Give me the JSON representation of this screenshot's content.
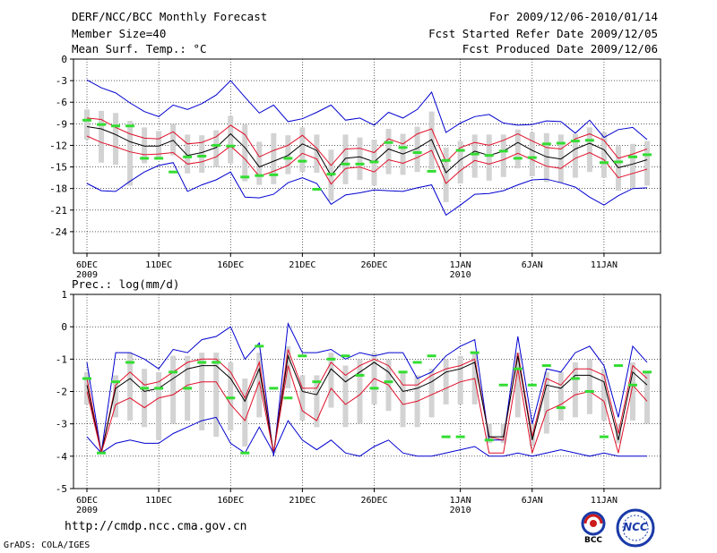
{
  "header": {
    "title": "DERF/NCC/BCC Monthly Forecast",
    "member_size": "Member Size=40",
    "variable": "Mean Surf. Temp.: °C",
    "period": "For 2009/12/06-2010/01/14",
    "started": "Fcst Started Refer Date 2009/12/05",
    "produced": "Fcst Produced Date 2009/12/06"
  },
  "footer": {
    "url": "http://cmdp.ncc.cma.gov.cn",
    "credit": "GrADS: COLA/IGES",
    "logo_bcc": "BCC",
    "logo_ncc": "NCC"
  },
  "colors": {
    "mean": "#000000",
    "spread": "#e0102a",
    "extreme": "#0000d0",
    "box": "#d3d3d3",
    "obs": "#33dd33"
  },
  "chart_data": [
    {
      "type": "line",
      "title": "Mean Surf. Temp.: °C",
      "ylim": [
        -27,
        0
      ],
      "yticks": [
        0,
        -3,
        -6,
        -9,
        -12,
        -15,
        -18,
        -21,
        -24
      ],
      "ytick_labels": [
        "0",
        "-3",
        "-6",
        "-9",
        "-12",
        "-15",
        "-18",
        "-21",
        "-24"
      ],
      "xlim": [
        0,
        39
      ],
      "xticks": [
        0,
        5,
        10,
        15,
        20,
        26,
        31,
        36
      ],
      "xtick_labels": [
        "6DEC",
        "11DEC",
        "16DEC",
        "21DEC",
        "26DEC",
        "1JAN",
        "6JAN",
        "11JAN"
      ],
      "xyear_labels": [
        {
          "x": 0,
          "label": "2009"
        },
        {
          "x": 26,
          "label": "2010"
        }
      ],
      "series": [
        {
          "name": "ensemble max",
          "color": "#0000d0",
          "values": [
            -2.9,
            -4,
            -4.7,
            -6.1,
            -7.3,
            -8,
            -6.4,
            -7,
            -6.2,
            -5,
            -3,
            -5.3,
            -7.5,
            -6.4,
            -8.7,
            -8.3,
            -7.4,
            -6.4,
            -8.5,
            -8.2,
            -9.2,
            -7.4,
            -8.2,
            -7,
            -4.6,
            -10.2,
            -8.9,
            -8,
            -7.7,
            -8.9,
            -9.2,
            -9.1,
            -8.6,
            -8.7,
            -10.3,
            -8.5,
            -10.9,
            -9.8,
            -9.5,
            -11.2
          ]
        },
        {
          "name": "upper spread",
          "color": "#e0102a",
          "values": [
            -8.2,
            -8.4,
            -9.5,
            -10.4,
            -11,
            -11.1,
            -10.1,
            -11.8,
            -11.6,
            -10.8,
            -9.2,
            -10.5,
            -13.6,
            -12.7,
            -12,
            -10.6,
            -12.4,
            -14.8,
            -12.5,
            -12.4,
            -13,
            -11.1,
            -11.8,
            -10.4,
            -9.7,
            -14.3,
            -12.3,
            -11.6,
            -12,
            -11.3,
            -10.4,
            -11.4,
            -12.3,
            -12.5,
            -11.1,
            -10.4,
            -11.3,
            -13.8,
            -13.2,
            -12.5
          ]
        },
        {
          "name": "ensemble mean",
          "color": "#000000",
          "values": [
            -9.4,
            -9.7,
            -10.5,
            -11.5,
            -12.1,
            -12.1,
            -11.3,
            -13.4,
            -13,
            -12.3,
            -10.4,
            -12.3,
            -15,
            -14.2,
            -13.4,
            -11.8,
            -12.7,
            -16.2,
            -13.8,
            -13.6,
            -14.3,
            -12.5,
            -13.2,
            -12.4,
            -11.2,
            -15.8,
            -14,
            -12.8,
            -13.4,
            -12.8,
            -11.6,
            -12.7,
            -13.6,
            -13.9,
            -12.5,
            -11.7,
            -12.6,
            -15.1,
            -14.6,
            -14
          ]
        },
        {
          "name": "lower spread",
          "color": "#e0102a",
          "values": [
            -10.7,
            -11.6,
            -12.2,
            -12.9,
            -13.3,
            -13.2,
            -13,
            -14.6,
            -14.3,
            -13.6,
            -12.1,
            -13.9,
            -16.3,
            -15.6,
            -14.8,
            -13.1,
            -13.9,
            -17.4,
            -15.2,
            -15,
            -15.7,
            -14,
            -14.5,
            -13.7,
            -12.7,
            -17.3,
            -15.5,
            -14.1,
            -14.6,
            -14,
            -13.1,
            -14,
            -14.9,
            -15.2,
            -13.8,
            -13,
            -14,
            -16.5,
            -15.9,
            -15.3
          ]
        },
        {
          "name": "ensemble min",
          "color": "#0000d0",
          "values": [
            -17.3,
            -18.3,
            -18.4,
            -17,
            -15.7,
            -14.8,
            -14.4,
            -18.4,
            -17.5,
            -16.8,
            -15.7,
            -19.2,
            -19.3,
            -18.8,
            -17.2,
            -16.5,
            -17.3,
            -20.2,
            -18.9,
            -18.6,
            -18.2,
            -18.3,
            -18.4,
            -17.9,
            -17.5,
            -21.7,
            -20.3,
            -18.8,
            -18.7,
            -18.3,
            -17.5,
            -16.8,
            -16.7,
            -17.2,
            -17.8,
            -19.2,
            -20.3,
            -19,
            -18,
            -17.9
          ]
        }
      ],
      "boxes": {
        "name": "inter-quartile",
        "color": "#d3d3d3",
        "top": [
          -7,
          -7.2,
          -7.5,
          -8.6,
          -9.5,
          -10,
          -9,
          -10.5,
          -10.6,
          -9.9,
          -7.9,
          -9.1,
          -11.5,
          -10.3,
          -10.6,
          -9.5,
          -10.5,
          -12.6,
          -10.5,
          -10.9,
          -11.2,
          -9.7,
          -10.4,
          -9.4,
          -7.3,
          -12.3,
          -11.4,
          -10.5,
          -10.5,
          -10.5,
          -9.8,
          -10.2,
          -10.3,
          -10.5,
          -10.4,
          -9.5,
          -10.2,
          -12.1,
          -11.8,
          -11.4
        ],
        "bottom": [
          -11.2,
          -14.4,
          -14.7,
          -17.6,
          -14.5,
          -14,
          -13.4,
          -15.9,
          -15.8,
          -15,
          -14.5,
          -17,
          -17.5,
          -17.4,
          -16,
          -15.7,
          -15.8,
          -19.7,
          -17.4,
          -16.8,
          -17.6,
          -16,
          -16.1,
          -15.7,
          -15.3,
          -19.9,
          -17.3,
          -16.5,
          -16.9,
          -16.4,
          -15.2,
          -16.3,
          -17.1,
          -17.2,
          -16.5,
          -15.7,
          -16.5,
          -18.3,
          -17.9,
          -17.6
        ]
      },
      "observed": {
        "name": "observed",
        "color": "#33dd33",
        "values": [
          -8.5,
          -9.1,
          -9.3,
          -9.3,
          -13.8,
          -13.8,
          -15.7,
          -13.6,
          -13.5,
          -12,
          -12.1,
          -16.4,
          -16.2,
          -16.1,
          -13.8,
          -14.2,
          -18.1,
          -16,
          -14.6,
          -14.6,
          -14.3,
          -11.6,
          -12.3,
          -13,
          -15.6,
          -14.1,
          -12.7,
          -13.2,
          -13.4,
          -12.8,
          -13.8,
          -13.7,
          -11.8,
          -11.7,
          -11.4,
          -11.3,
          -14.4,
          -14.3,
          -13.6,
          -13.3
        ]
      }
    },
    {
      "type": "line",
      "title": "Prec.: log(mm/d)",
      "ylim": [
        -5,
        1
      ],
      "yticks": [
        1,
        0,
        -1,
        -2,
        -3,
        -4,
        -5
      ],
      "ytick_labels": [
        "1",
        "0",
        "-1",
        "-2",
        "-3",
        "-4",
        "-5"
      ],
      "xlim": [
        0,
        39
      ],
      "xticks": [
        0,
        5,
        10,
        15,
        20,
        26,
        31,
        36
      ],
      "xtick_labels": [
        "6DEC",
        "11DEC",
        "16DEC",
        "21DEC",
        "26DEC",
        "1JAN",
        "6JAN",
        "11JAN"
      ],
      "xyear_labels": [
        {
          "x": 0,
          "label": "2009"
        },
        {
          "x": 26,
          "label": "2010"
        }
      ],
      "series": [
        {
          "name": "ensemble max",
          "color": "#0000d0",
          "values": [
            -1.1,
            -3.9,
            -0.8,
            -0.8,
            -1,
            -1.3,
            -0.7,
            -0.8,
            -0.4,
            -0.3,
            0,
            -1,
            -0.5,
            -4,
            0.1,
            -0.8,
            -0.8,
            -0.7,
            -1,
            -0.8,
            -0.9,
            -0.8,
            -0.8,
            -1.6,
            -1.4,
            -0.9,
            -0.6,
            -0.4,
            -3.5,
            -3.5,
            -0.3,
            -3,
            -1.3,
            -1.4,
            -0.8,
            -0.6,
            -1.2,
            -2.8,
            -0.6,
            -1.1
          ]
        },
        {
          "name": "upper spread",
          "color": "#e0102a",
          "values": [
            -1.6,
            -3.9,
            -1.8,
            -1.4,
            -1.8,
            -1.7,
            -1.4,
            -1.1,
            -1,
            -1,
            -1.4,
            -2.2,
            -1.1,
            -3.9,
            -0.7,
            -1.9,
            -1.9,
            -1.1,
            -1.5,
            -1.2,
            -1,
            -1.2,
            -1.8,
            -1.8,
            -1.5,
            -1.3,
            -1.2,
            -1,
            -3.4,
            -3.5,
            -0.8,
            -3.4,
            -1.6,
            -1.8,
            -1.3,
            -1.3,
            -1.5,
            -3.3,
            -1.2,
            -1.6
          ]
        },
        {
          "name": "ensemble mean",
          "color": "#000000",
          "values": [
            -1.8,
            -3.9,
            -1.9,
            -1.6,
            -2,
            -1.9,
            -1.6,
            -1.3,
            -1.2,
            -1.2,
            -1.6,
            -2.3,
            -1.3,
            -3.9,
            -0.9,
            -2,
            -2.1,
            -1.3,
            -1.7,
            -1.4,
            -1.1,
            -1.4,
            -2,
            -1.9,
            -1.7,
            -1.4,
            -1.3,
            -1.1,
            -3.4,
            -3.4,
            -0.9,
            -3.5,
            -1.8,
            -1.9,
            -1.5,
            -1.5,
            -1.7,
            -3.5,
            -1.4,
            -1.8
          ]
        },
        {
          "name": "lower spread",
          "color": "#e0102a",
          "values": [
            -2,
            -3.9,
            -2.4,
            -2.2,
            -2.5,
            -2.2,
            -2.1,
            -1.8,
            -1.7,
            -1.7,
            -2.4,
            -2.9,
            -1.7,
            -3.9,
            -1.2,
            -2.6,
            -2.9,
            -1.9,
            -2.4,
            -2.1,
            -1.6,
            -1.8,
            -2.4,
            -2.3,
            -2.1,
            -1.9,
            -1.7,
            -1.6,
            -3.9,
            -3.9,
            -1.3,
            -3.9,
            -2.6,
            -2.4,
            -2.1,
            -2,
            -2.3,
            -3.9,
            -1.8,
            -2.3
          ]
        },
        {
          "name": "ensemble min",
          "color": "#0000d0",
          "values": [
            -3.4,
            -3.9,
            -3.6,
            -3.5,
            -3.6,
            -3.6,
            -3.3,
            -3.1,
            -2.9,
            -2.8,
            -3.6,
            -3.9,
            -3.1,
            -3.9,
            -2.9,
            -3.5,
            -3.8,
            -3.5,
            -3.9,
            -4,
            -3.7,
            -3.5,
            -3.9,
            -4,
            -4,
            -3.9,
            -3.8,
            -3.7,
            -4,
            -4,
            -3.9,
            -4,
            -3.9,
            -3.8,
            -3.9,
            -4,
            -3.9,
            -4,
            -4,
            -4
          ]
        }
      ],
      "boxes": {
        "name": "inter-quartile",
        "color": "#d3d3d3",
        "top": [
          -1.4,
          -3.8,
          -1.5,
          -0.8,
          -1.3,
          -1.4,
          -0.9,
          -0.9,
          -0.8,
          -0.8,
          -1.1,
          -1.6,
          -0.8,
          -3.8,
          -0.6,
          -1.5,
          -1.5,
          -0.8,
          -1.2,
          -1,
          -0.8,
          -1,
          -1.4,
          -1.5,
          -1.3,
          -1,
          -0.9,
          -0.8,
          -3,
          -3,
          -0.8,
          -3,
          -1.4,
          -1.4,
          -1.1,
          -1,
          -1.3,
          -3,
          -1.1,
          -1.4
        ],
        "bottom": [
          -2.4,
          -3.9,
          -2.8,
          -2.9,
          -3.1,
          -3.5,
          -3,
          -2.9,
          -3.2,
          -3.4,
          -3.2,
          -3.7,
          -2.8,
          -3.9,
          -1.9,
          -2.9,
          -3.1,
          -2.5,
          -3.1,
          -3,
          -2.4,
          -2.6,
          -3.1,
          -3.1,
          -2.8,
          -2.4,
          -2.4,
          -2.4,
          -3.6,
          -3.6,
          -2.8,
          -3.7,
          -3.3,
          -2.9,
          -2.8,
          -2.7,
          -2.9,
          -3.6,
          -2.9,
          -3
        ]
      },
      "observed": {
        "name": "observed",
        "color": "#33dd33",
        "values": [
          -1.6,
          -3.9,
          -1.7,
          -1.1,
          -1.9,
          -1.9,
          -1.4,
          -1.9,
          -1.1,
          -1.1,
          -2.2,
          -3.9,
          -0.6,
          -1.9,
          -2.2,
          -0.9,
          -1.7,
          -1,
          -0.9,
          -1.5,
          -1.9,
          -1.7,
          -1.4,
          -1.1,
          -0.9,
          -3.4,
          -3.4,
          -0.8,
          -3.5,
          -1.8,
          -1.3,
          -1.8,
          -1.2,
          -2.5,
          -1.6,
          -2,
          -3.4,
          -1.2,
          -1.8,
          -1.4
        ]
      }
    }
  ]
}
